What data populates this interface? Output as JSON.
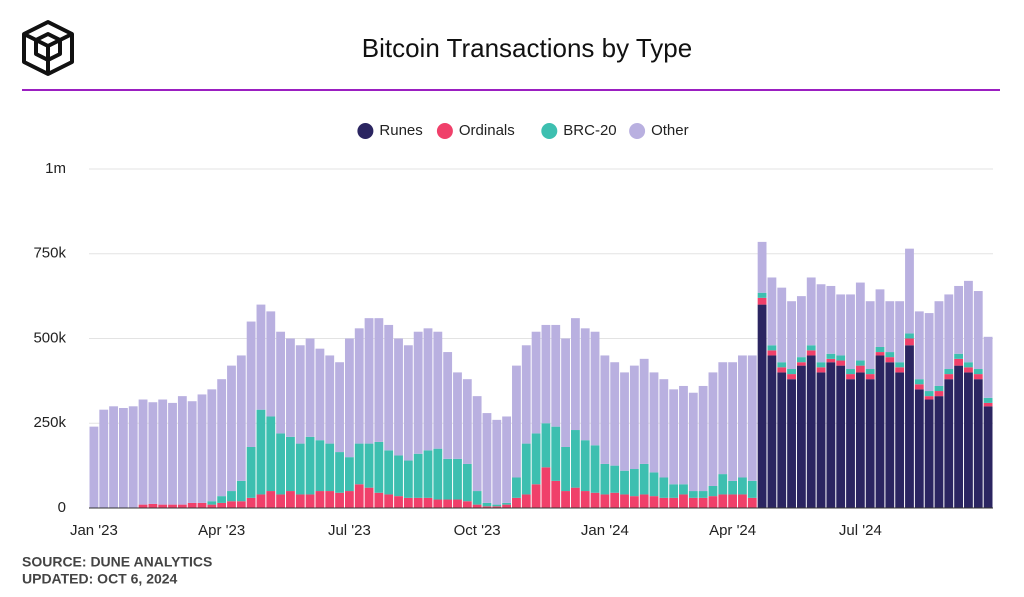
{
  "chart_data": {
    "type": "stacked-bar",
    "title": "Bitcoin Transactions by Type",
    "source": "SOURCE: DUNE ANALYTICS",
    "updated": "UPDATED: OCT 6, 2024",
    "categories": [
      "Jan '23",
      null,
      null,
      null,
      null,
      null,
      null,
      null,
      null,
      null,
      null,
      null,
      null,
      "Apr '23",
      null,
      null,
      null,
      null,
      null,
      null,
      null,
      null,
      null,
      null,
      null,
      null,
      "Jul '23",
      null,
      null,
      null,
      null,
      null,
      null,
      null,
      null,
      null,
      null,
      null,
      null,
      "Oct '23",
      null,
      null,
      null,
      null,
      null,
      null,
      null,
      null,
      null,
      null,
      null,
      null,
      "Jan '24",
      null,
      null,
      null,
      null,
      null,
      null,
      null,
      null,
      null,
      null,
      null,
      null,
      "Apr '24",
      null,
      null,
      null,
      null,
      null,
      null,
      null,
      null,
      null,
      null,
      null,
      null,
      "Jul '24",
      null,
      null,
      null,
      null,
      null,
      null,
      null,
      null,
      null,
      null,
      null,
      null,
      null
    ],
    "series": [
      {
        "name": "Runes",
        "color": "#2b2561",
        "values": [
          0,
          0,
          0,
          0,
          0,
          0,
          0,
          0,
          0,
          0,
          0,
          0,
          0,
          0,
          0,
          0,
          0,
          0,
          0,
          0,
          0,
          0,
          0,
          0,
          0,
          0,
          0,
          0,
          0,
          0,
          0,
          0,
          0,
          0,
          0,
          0,
          0,
          0,
          0,
          0,
          0,
          0,
          0,
          0,
          0,
          0,
          0,
          0,
          0,
          0,
          0,
          0,
          0,
          0,
          0,
          0,
          0,
          0,
          0,
          0,
          0,
          0,
          0,
          0,
          0,
          0,
          0,
          0,
          600000,
          450000,
          400000,
          380000,
          420000,
          450000,
          400000,
          430000,
          420000,
          380000,
          400000,
          380000,
          450000,
          430000,
          400000,
          480000,
          350000,
          320000,
          330000,
          380000,
          420000,
          400000,
          380000,
          300000
        ]
      },
      {
        "name": "Ordinals",
        "color": "#f0406a",
        "values": [
          0,
          0,
          0,
          0,
          0,
          10000,
          12000,
          10000,
          10000,
          10000,
          15000,
          15000,
          10000,
          15000,
          20000,
          20000,
          30000,
          40000,
          50000,
          40000,
          50000,
          40000,
          40000,
          50000,
          50000,
          45000,
          50000,
          70000,
          60000,
          45000,
          40000,
          35000,
          30000,
          30000,
          30000,
          25000,
          25000,
          25000,
          20000,
          10000,
          5000,
          5000,
          10000,
          30000,
          40000,
          70000,
          120000,
          80000,
          50000,
          60000,
          50000,
          45000,
          40000,
          45000,
          40000,
          35000,
          40000,
          35000,
          30000,
          30000,
          40000,
          30000,
          30000,
          35000,
          40000,
          40000,
          40000,
          30000,
          20000,
          15000,
          15000,
          15000,
          10000,
          15000,
          15000,
          10000,
          15000,
          15000,
          20000,
          15000,
          10000,
          15000,
          15000,
          20000,
          15000,
          10000,
          15000,
          15000,
          20000,
          15000,
          15000,
          10000
        ]
      },
      {
        "name": "BRC-20",
        "color": "#3dbfb0",
        "values": [
          0,
          0,
          0,
          0,
          0,
          0,
          0,
          0,
          0,
          0,
          0,
          0,
          10000,
          20000,
          30000,
          60000,
          150000,
          250000,
          220000,
          180000,
          160000,
          150000,
          170000,
          150000,
          140000,
          120000,
          100000,
          120000,
          130000,
          150000,
          130000,
          120000,
          110000,
          130000,
          140000,
          150000,
          120000,
          120000,
          110000,
          40000,
          10000,
          5000,
          5000,
          60000,
          150000,
          150000,
          130000,
          160000,
          130000,
          170000,
          150000,
          140000,
          90000,
          80000,
          70000,
          80000,
          90000,
          70000,
          60000,
          40000,
          30000,
          20000,
          20000,
          30000,
          60000,
          40000,
          50000,
          50000,
          15000,
          15000,
          15000,
          15000,
          15000,
          15000,
          15000,
          15000,
          15000,
          15000,
          15000,
          15000,
          15000,
          15000,
          15000,
          15000,
          15000,
          15000,
          15000,
          15000,
          15000,
          15000,
          15000,
          15000
        ]
      },
      {
        "name": "Other",
        "color": "#b9b0e0",
        "values": [
          240000,
          290000,
          300000,
          295000,
          300000,
          310000,
          300000,
          310000,
          300000,
          320000,
          300000,
          320000,
          330000,
          345000,
          370000,
          370000,
          370000,
          310000,
          310000,
          300000,
          290000,
          290000,
          290000,
          270000,
          260000,
          265000,
          350000,
          340000,
          370000,
          365000,
          370000,
          345000,
          340000,
          360000,
          360000,
          345000,
          315000,
          255000,
          250000,
          280000,
          265000,
          250000,
          255000,
          330000,
          290000,
          300000,
          290000,
          300000,
          320000,
          330000,
          330000,
          335000,
          320000,
          305000,
          290000,
          305000,
          310000,
          295000,
          290000,
          280000,
          290000,
          290000,
          310000,
          335000,
          330000,
          350000,
          360000,
          370000,
          150000,
          200000,
          220000,
          200000,
          180000,
          200000,
          230000,
          200000,
          180000,
          220000,
          230000,
          200000,
          170000,
          150000,
          180000,
          250000,
          200000,
          230000,
          250000,
          220000,
          200000,
          240000,
          230000,
          180000
        ]
      }
    ],
    "ylim": [
      0,
      1000000
    ],
    "yticks": [
      0,
      {
        "value": 250000,
        "label": "250k"
      },
      {
        "value": 500000,
        "label": "500k"
      },
      {
        "value": 750000,
        "label": "750k"
      },
      {
        "value": 1000000,
        "label": "1m"
      }
    ],
    "grid": true
  }
}
